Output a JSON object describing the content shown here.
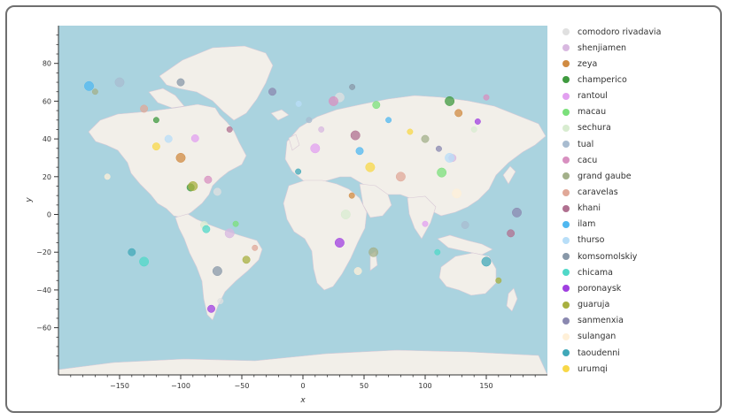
{
  "chart_data": {
    "type": "scatter",
    "title": "",
    "xlabel": "x",
    "ylabel": "y",
    "xlim": [
      -200,
      200
    ],
    "ylim": [
      -85,
      100
    ],
    "x_ticks": [
      -150,
      -100,
      -50,
      0,
      50,
      100,
      150
    ],
    "y_ticks": [
      80,
      60,
      40,
      20,
      0,
      -20,
      -40,
      -60
    ],
    "x_tick_labels": [
      "−150",
      "−100",
      "−50",
      "0",
      "50",
      "100",
      "150"
    ],
    "y_tick_labels": [
      "80",
      "60",
      "40",
      "20",
      "0",
      "−20",
      "−40",
      "−60"
    ],
    "background": "world map tiles",
    "legend_position": "right",
    "series": [
      {
        "name": "comodoro rivadavia",
        "color": "#e0e0e0",
        "points": [
          [
            -67.5,
            -45.9
          ],
          [
            -70,
            12
          ],
          [
            30,
            62
          ]
        ]
      },
      {
        "name": "shenjiamen",
        "color": "#d8b8e0",
        "points": [
          [
            122.3,
            29.9
          ],
          [
            -60,
            -10
          ],
          [
            15,
            45
          ]
        ]
      },
      {
        "name": "zeya",
        "color": "#d08b42",
        "points": [
          [
            127.3,
            53.7
          ],
          [
            -100,
            30
          ],
          [
            40,
            10
          ]
        ]
      },
      {
        "name": "champerico",
        "color": "#3f9a3f",
        "points": [
          [
            -91.9,
            14.3
          ],
          [
            120,
            60
          ],
          [
            -120,
            50
          ]
        ]
      },
      {
        "name": "rantoul",
        "color": "#e2a0f0",
        "points": [
          [
            -88.2,
            40.3
          ],
          [
            10,
            35
          ],
          [
            100,
            -5
          ]
        ]
      },
      {
        "name": "macau",
        "color": "#7be07b",
        "points": [
          [
            113.5,
            22.2
          ],
          [
            -55,
            -5
          ],
          [
            60,
            58
          ]
        ]
      },
      {
        "name": "sechura",
        "color": "#d8ecd0",
        "points": [
          [
            -80.8,
            -5.6
          ],
          [
            35,
            0
          ],
          [
            140,
            45
          ]
        ]
      },
      {
        "name": "tual",
        "color": "#a8bcd0",
        "points": [
          [
            132.7,
            -5.6
          ],
          [
            -150,
            70
          ],
          [
            5,
            50
          ]
        ]
      },
      {
        "name": "cacu",
        "color": "#d890c0",
        "points": [
          [
            -77.6,
            18.4
          ],
          [
            25,
            60
          ],
          [
            150,
            62
          ]
        ]
      },
      {
        "name": "grand gaube",
        "color": "#a3b08a",
        "points": [
          [
            57.7,
            -20
          ],
          [
            -170,
            65
          ],
          [
            100,
            40
          ]
        ]
      },
      {
        "name": "caravelas",
        "color": "#e0a898",
        "points": [
          [
            -39.3,
            -17.7
          ],
          [
            -130,
            56
          ],
          [
            80,
            20
          ]
        ]
      },
      {
        "name": "khani",
        "color": "#b07090",
        "points": [
          [
            42.9,
            41.9
          ],
          [
            -60,
            45
          ],
          [
            170,
            -10
          ]
        ]
      },
      {
        "name": "ilam",
        "color": "#50b8f0",
        "points": [
          [
            46.4,
            33.6
          ],
          [
            -175,
            68
          ],
          [
            70,
            50
          ]
        ]
      },
      {
        "name": "thurso",
        "color": "#b8def8",
        "points": [
          [
            -3.5,
            58.6
          ],
          [
            -110,
            40
          ],
          [
            120,
            30
          ]
        ]
      },
      {
        "name": "komsomolskiy",
        "color": "#8898a8",
        "points": [
          [
            40.3,
            67.5
          ],
          [
            -100,
            70
          ],
          [
            -70,
            -30
          ]
        ]
      },
      {
        "name": "chicama",
        "color": "#50d8c8",
        "points": [
          [
            -79.1,
            -7.8
          ],
          [
            -130,
            -25
          ],
          [
            110,
            -20
          ]
        ]
      },
      {
        "name": "poronaysk",
        "color": "#a040e0",
        "points": [
          [
            143,
            49.2
          ],
          [
            -75,
            -50
          ],
          [
            30,
            -15
          ]
        ]
      },
      {
        "name": "guaruja",
        "color": "#a8b040",
        "points": [
          [
            -46.3,
            -24
          ],
          [
            -90,
            15
          ],
          [
            160,
            -35
          ]
        ]
      },
      {
        "name": "sanmenxia",
        "color": "#8a88b0",
        "points": [
          [
            111.2,
            34.8
          ],
          [
            -25,
            65
          ],
          [
            175,
            1
          ]
        ]
      },
      {
        "name": "sulangan",
        "color": "#fff0d8",
        "points": [
          [
            125.8,
            11.1
          ],
          [
            -160,
            20
          ],
          [
            45,
            -30
          ]
        ]
      },
      {
        "name": "taoudenni",
        "color": "#40a8b8",
        "points": [
          [
            -3.9,
            22.7
          ],
          [
            -140,
            -20
          ],
          [
            150,
            -25
          ]
        ]
      },
      {
        "name": "urumqi",
        "color": "#f8d848",
        "points": [
          [
            87.6,
            43.8
          ],
          [
            -120,
            36
          ],
          [
            55,
            25
          ]
        ]
      }
    ]
  }
}
